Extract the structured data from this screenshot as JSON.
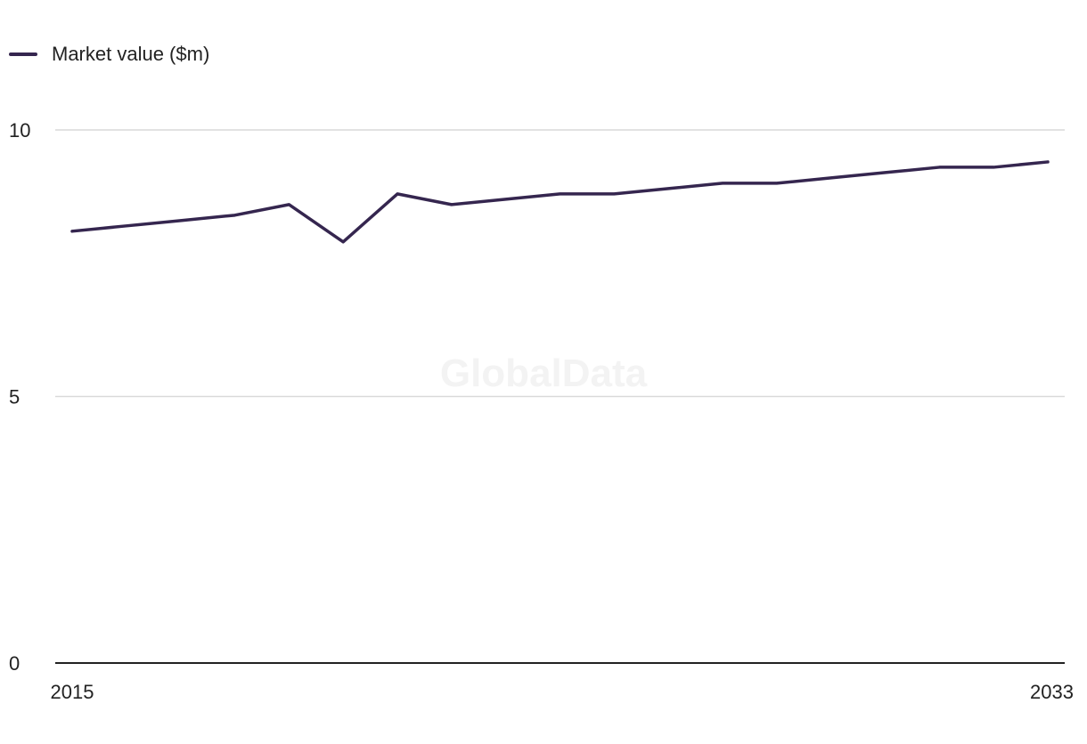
{
  "legend": {
    "label": "Market value ($m)"
  },
  "watermark": "GlobalData",
  "colors": {
    "series": "#35264f",
    "grid": "#d9d9d9",
    "axis": "#222222"
  },
  "chart_data": {
    "type": "line",
    "title": "",
    "xlabel": "",
    "ylabel": "",
    "x": [
      2015,
      2016,
      2017,
      2018,
      2019,
      2020,
      2021,
      2022,
      2023,
      2024,
      2025,
      2026,
      2027,
      2028,
      2029,
      2030,
      2031,
      2032,
      2033
    ],
    "x_tick_labels": [
      "2015",
      "2033"
    ],
    "y_ticks": [
      0,
      5,
      10
    ],
    "y_tick_labels": [
      "0",
      "5",
      "10"
    ],
    "ylim": [
      0,
      10
    ],
    "grid": true,
    "legend_position": "top-left",
    "series": [
      {
        "name": "Market value ($m)",
        "values": [
          8.1,
          8.2,
          8.3,
          8.4,
          8.6,
          7.9,
          8.8,
          8.6,
          8.7,
          8.8,
          8.8,
          8.9,
          9.0,
          9.0,
          9.1,
          9.2,
          9.3,
          9.3,
          9.4
        ]
      }
    ]
  }
}
